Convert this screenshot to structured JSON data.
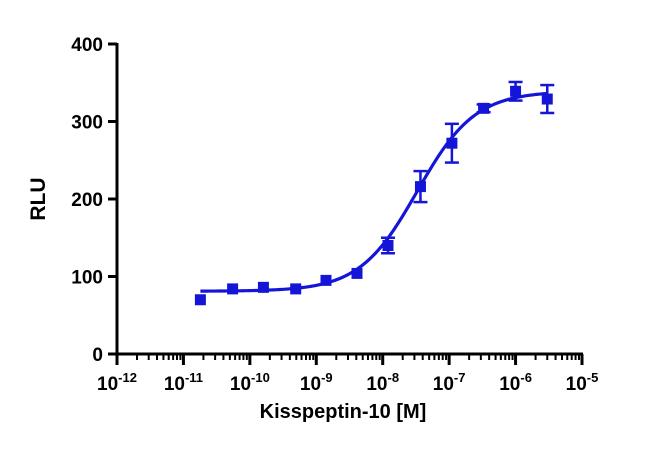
{
  "chart_data": {
    "type": "scatter",
    "title": "",
    "xlabel": "Kisspeptin-10 [M]",
    "ylabel": "RLU",
    "x_scale": "log",
    "xlim": [
      1e-12,
      1e-05
    ],
    "ylim": [
      0,
      400
    ],
    "x_ticks": [
      {
        "base": "10",
        "exp": "-12",
        "value": 1e-12
      },
      {
        "base": "10",
        "exp": "-11",
        "value": 1e-11
      },
      {
        "base": "10",
        "exp": "-10",
        "value": 1e-10
      },
      {
        "base": "10",
        "exp": "-9",
        "value": 1e-09
      },
      {
        "base": "10",
        "exp": "-8",
        "value": 1e-08
      },
      {
        "base": "10",
        "exp": "-7",
        "value": 1e-07
      },
      {
        "base": "10",
        "exp": "-6",
        "value": 1e-06
      },
      {
        "base": "10",
        "exp": "-5",
        "value": 1e-05
      }
    ],
    "y_ticks": [
      "0",
      "100",
      "200",
      "300",
      "400"
    ],
    "grid": false,
    "legend": "none",
    "series": [
      {
        "color": "#1515d8",
        "marker": "square",
        "points": [
          {
            "x": 1.8e-11,
            "y": 70,
            "err": 0
          },
          {
            "x": 5.5e-11,
            "y": 84,
            "err": 0
          },
          {
            "x": 1.6e-10,
            "y": 86,
            "err": 0
          },
          {
            "x": 4.9e-10,
            "y": 84,
            "err": 0
          },
          {
            "x": 1.4e-09,
            "y": 95,
            "err": 0
          },
          {
            "x": 4.1e-09,
            "y": 104,
            "err": 0
          },
          {
            "x": 1.2e-08,
            "y": 140,
            "err": 10
          },
          {
            "x": 3.7e-08,
            "y": 216,
            "err": 20
          },
          {
            "x": 1.1e-07,
            "y": 272,
            "err": 25
          },
          {
            "x": 3.3e-07,
            "y": 317,
            "err": 5
          },
          {
            "x": 1e-06,
            "y": 339,
            "err": 12
          },
          {
            "x": 3e-06,
            "y": 329,
            "err": 18
          }
        ],
        "fit": {
          "bottom": 81,
          "top": 339,
          "log_ec50": -7.48,
          "hill": 1.0,
          "x_from": 1.8e-11,
          "x_to": 3e-06
        }
      }
    ]
  }
}
